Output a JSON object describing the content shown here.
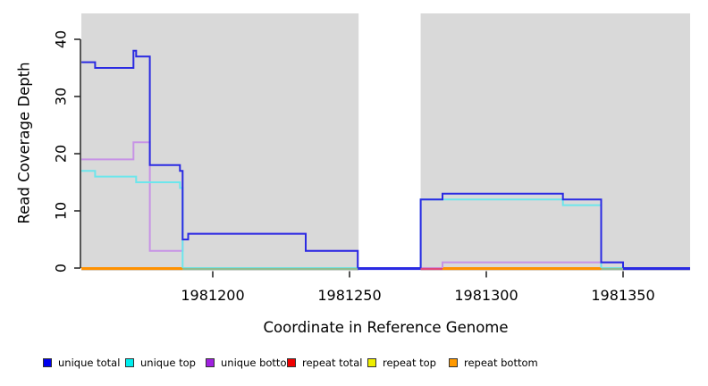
{
  "figure": {
    "background": "#ffffff",
    "panel_background": "#d9d9d9"
  },
  "chart_data": {
    "type": "line",
    "variant": "step-coverage",
    "title": "",
    "xlabel": "Coordinate in Reference Genome",
    "ylabel": "Read Coverage Depth",
    "x_ticks": [
      1981200,
      1981250,
      1981300,
      1981350
    ],
    "y_ticks": [
      0,
      10,
      20,
      30,
      40
    ],
    "x_range": [
      1981152,
      1981374.5
    ],
    "y_range": [
      0,
      43
    ],
    "grid": false,
    "legend_position": "bottom",
    "gap_region": {
      "from": 1981253,
      "to": 1981276,
      "color": "#ffffff"
    },
    "series": [
      {
        "name": "repeat total",
        "color": "#dd1111",
        "points": [
          [
            1981152,
            0
          ]
        ]
      },
      {
        "name": "repeat top",
        "color": "#e8e800",
        "points": [
          [
            1981152,
            0
          ]
        ]
      },
      {
        "name": "repeat bottom",
        "color": "#ff9100",
        "points": [
          [
            1981152,
            0
          ]
        ]
      },
      {
        "name": "unique bottom",
        "color": "#c793e6",
        "points": [
          [
            1981152,
            19
          ],
          [
            1981171,
            22
          ],
          [
            1981177,
            3
          ],
          [
            1981189,
            5
          ],
          [
            1981191,
            6
          ],
          [
            1981234,
            3
          ],
          [
            1981253,
            0
          ],
          [
            1981284,
            1
          ],
          [
            1981350,
            0
          ]
        ]
      },
      {
        "name": "unique top",
        "color": "#6ce6ec",
        "points": [
          [
            1981152,
            17
          ],
          [
            1981157,
            16
          ],
          [
            1981172,
            15
          ],
          [
            1981188,
            14
          ],
          [
            1981189,
            0
          ],
          [
            1981276,
            12
          ],
          [
            1981328,
            11
          ],
          [
            1981342,
            0
          ]
        ]
      },
      {
        "name": "unique total",
        "color": "#2a2ae2",
        "points": [
          [
            1981152,
            36
          ],
          [
            1981157,
            35
          ],
          [
            1981171,
            38
          ],
          [
            1981172,
            37
          ],
          [
            1981177,
            18
          ],
          [
            1981188,
            17
          ],
          [
            1981189,
            5
          ],
          [
            1981191,
            6
          ],
          [
            1981234,
            3
          ],
          [
            1981253,
            0
          ],
          [
            1981276,
            12
          ],
          [
            1981284,
            13
          ],
          [
            1981328,
            12
          ],
          [
            1981342,
            1
          ],
          [
            1981350,
            0
          ]
        ]
      }
    ],
    "baseline_segments": [
      {
        "from": 1981152,
        "to": 1981189,
        "color": "#ff9100"
      },
      {
        "from": 1981189,
        "to": 1981253,
        "color": "#8fbc8f"
      },
      {
        "from": 1981253,
        "to": 1981276,
        "color": "#2a2ae2"
      },
      {
        "from": 1981276,
        "to": 1981284,
        "color": "#e0487a"
      },
      {
        "from": 1981284,
        "to": 1981342,
        "color": "#ff9100"
      },
      {
        "from": 1981342,
        "to": 1981350,
        "color": "#8fbc8f"
      },
      {
        "from": 1981350,
        "to": 1981374.5,
        "color": "#2a2ae2"
      }
    ],
    "legend": [
      {
        "label": "unique total",
        "color": "#0000ee"
      },
      {
        "label": "unique top",
        "color": "#00eeee"
      },
      {
        "label": "unique bottom",
        "color": "#a020e0"
      },
      {
        "label": "repeat total",
        "color": "#ee0000"
      },
      {
        "label": "repeat top",
        "color": "#eeee00"
      },
      {
        "label": "repeat bottom",
        "color": "#ff9900"
      }
    ]
  }
}
